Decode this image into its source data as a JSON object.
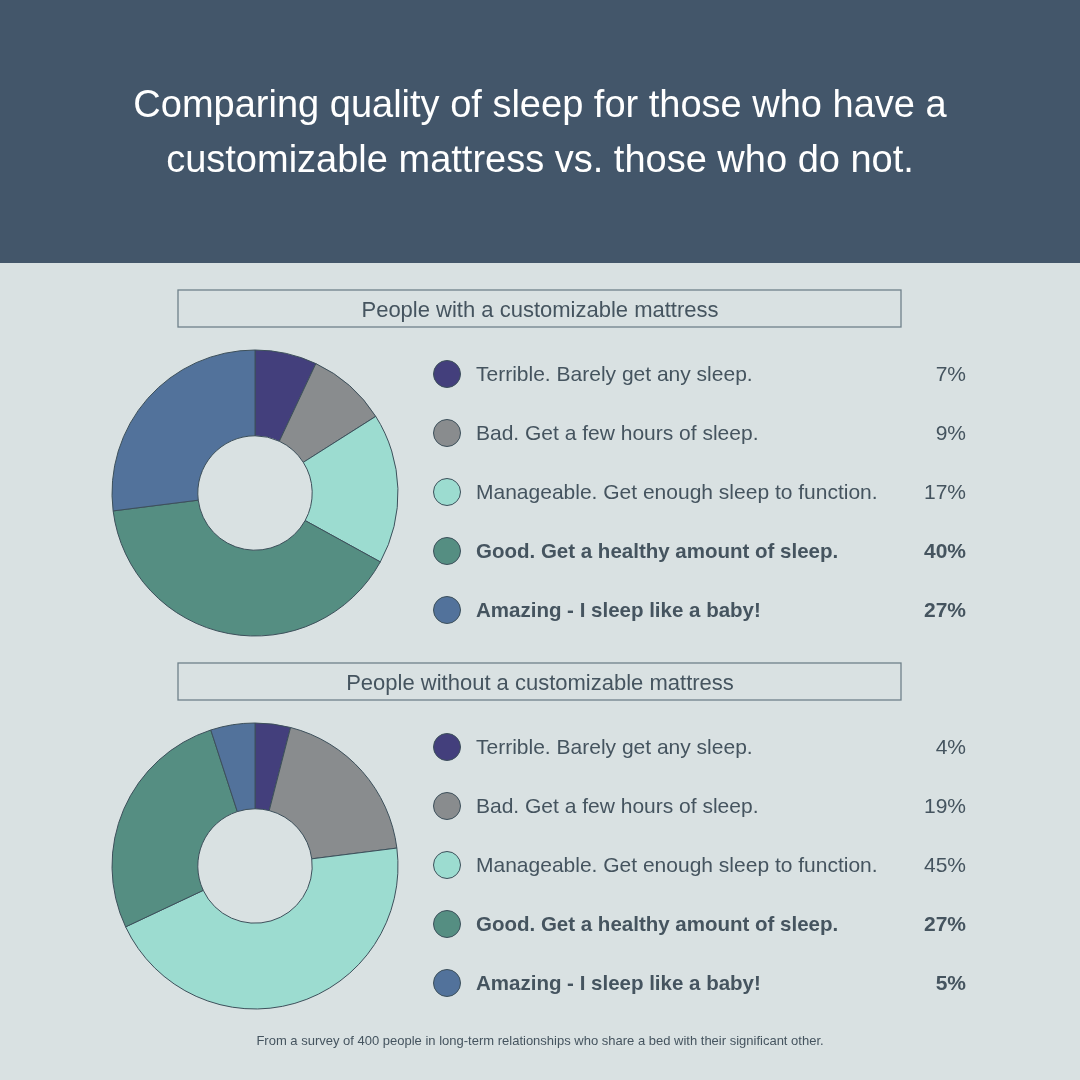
{
  "chart_data": [
    {
      "type": "donut",
      "title": "Comparing quality of sleep for those who have a customizable mattress vs. those who do not.",
      "subtitle": "People with a customizable mattress",
      "categories": [
        "Terrible. Barely get any sleep.",
        "Bad. Get a few hours of sleep.",
        "Manageable. Get enough sleep to function.",
        "Good. Get a healthy amount of sleep.",
        "Amazing - I sleep like a baby!"
      ],
      "values": [
        7,
        9,
        17,
        40,
        27
      ],
      "value_labels": [
        "7%",
        "9%",
        "17%",
        "40%",
        "27%"
      ],
      "colors": [
        "#433f7c",
        "#898c8e",
        "#9cdcd0",
        "#558e82",
        "#52729b"
      ],
      "legend": "right"
    },
    {
      "type": "donut",
      "title": "People without a customizable mattress",
      "categories": [
        "Terrible. Barely get any sleep.",
        "Bad. Get a few hours of sleep.",
        "Manageable. Get enough sleep to function.",
        "Good. Get a healthy amount of sleep.",
        "Amazing - I sleep like a baby!"
      ],
      "values": [
        4,
        19,
        45,
        27,
        5
      ],
      "value_labels": [
        "4%",
        "19%",
        "45%",
        "27%",
        "5%"
      ],
      "colors": [
        "#433f7c",
        "#898c8e",
        "#9cdcd0",
        "#558e82",
        "#52729b"
      ],
      "legend": "right",
      "annotations": [
        "From a survey of 400 people in long-term relationships who share a bed with their significant other."
      ]
    }
  ]
}
